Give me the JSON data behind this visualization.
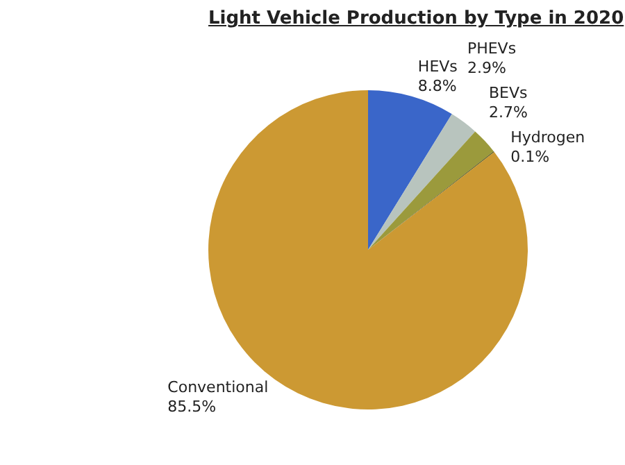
{
  "chart_data": {
    "type": "pie",
    "title": "Light Vehicle Production by Type in 2020",
    "categories": [
      "HEVs",
      "PHEVs",
      "BEVs",
      "Hydrogen",
      "Conventional"
    ],
    "values": [
      8.8,
      2.9,
      2.7,
      0.1,
      85.5
    ],
    "colors": [
      "#3a66c9",
      "#b8c4be",
      "#9b9a3c",
      "#5a5a20",
      "#cc9933"
    ],
    "value_labels": [
      "8.8%",
      "2.9%",
      "2.7%",
      "0.1%",
      "85.5%"
    ],
    "legend": false
  }
}
